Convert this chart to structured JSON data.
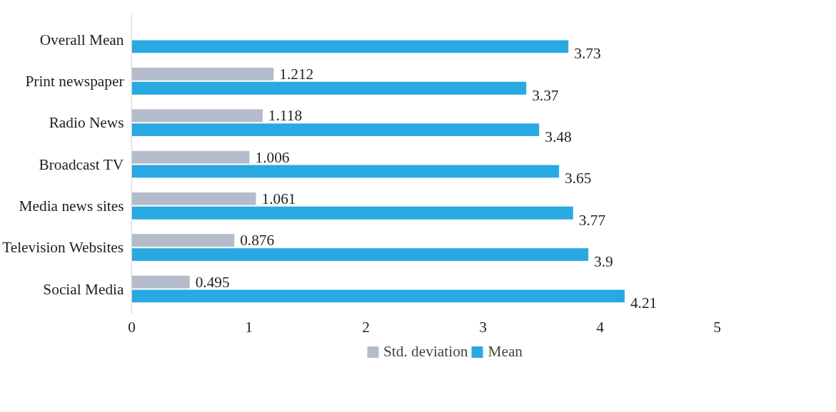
{
  "chart_data": {
    "type": "bar",
    "orientation": "horizontal",
    "categories": [
      "Overall Mean",
      "Print newspaper",
      "Radio News",
      "Broadcast TV",
      "Media news sites",
      "Television Websites",
      "Social Media"
    ],
    "series": [
      {
        "name": "Std. deviation",
        "color": "#b4bccb",
        "values": [
          null,
          1.212,
          1.118,
          1.006,
          1.061,
          0.876,
          0.495
        ]
      },
      {
        "name": "Mean",
        "color": "#29a9e1",
        "values": [
          3.73,
          3.37,
          3.48,
          3.65,
          3.77,
          3.9,
          4.21
        ]
      }
    ],
    "xlim": [
      0,
      5
    ],
    "xticks": [
      0,
      1,
      2,
      3,
      4,
      5
    ],
    "data_labels": true,
    "legend": "bottom",
    "grid": false
  }
}
